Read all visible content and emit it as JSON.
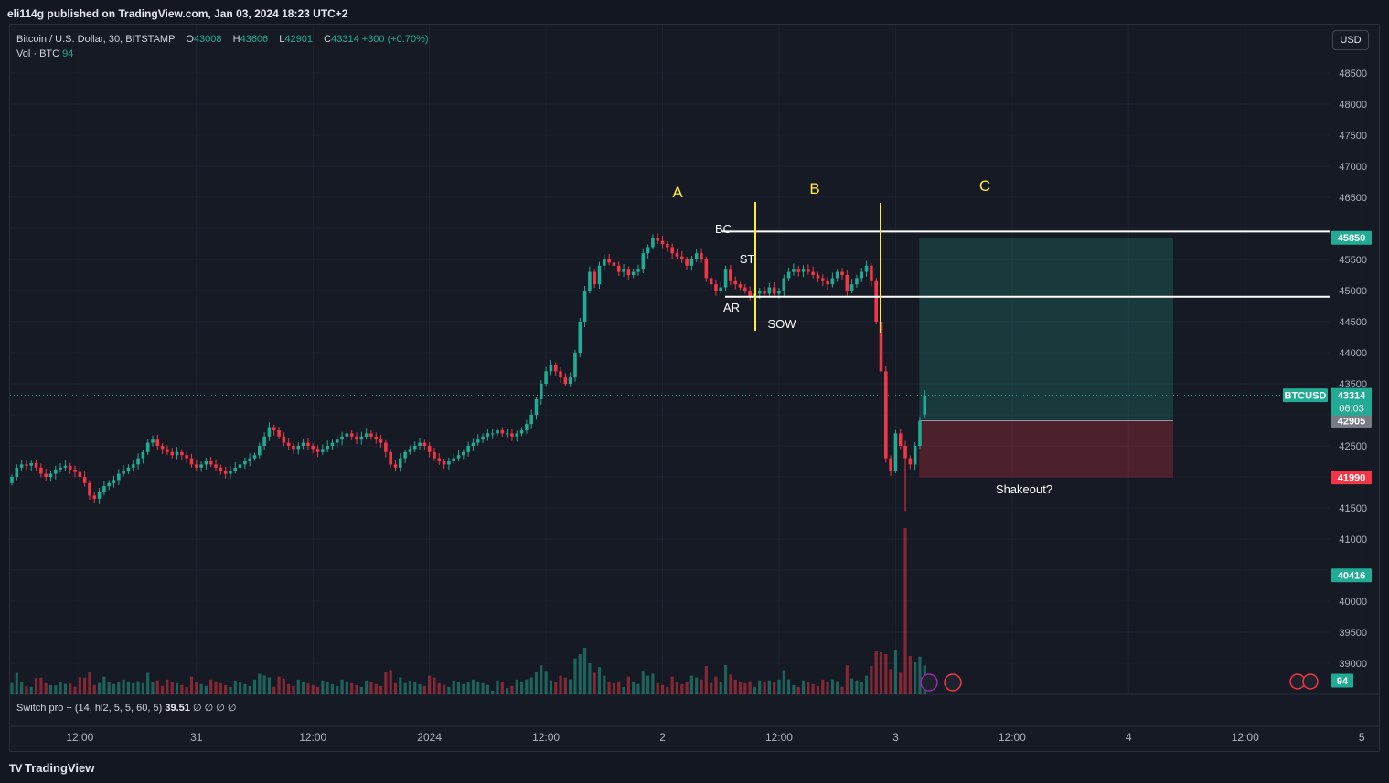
{
  "header": {
    "published_by": "eli114g published on TradingView.com, Jan 03, 2024 18:23 UTC+2"
  },
  "legend": {
    "symbol": "Bitcoin / U.S. Dollar, 30, BITSTAMP",
    "o_label": "O",
    "o_value": "43008",
    "h_label": "H",
    "h_value": "43606",
    "l_label": "L",
    "l_value": "42901",
    "c_label": "C",
    "c_value": "43314",
    "change": "+300 (+0.70%)",
    "vol_label": "Vol · BTC",
    "vol_value": "94"
  },
  "currency_button": "USD",
  "indicator": {
    "name": "Switch pro + (14, hl2, 5, 5, 60, 5)",
    "value": "39.51",
    "extras": "∅ ∅ ∅ ∅"
  },
  "footer": {
    "brand": "TradingView"
  },
  "colors": {
    "up": "#22ab94",
    "down": "#f23645",
    "bg": "#161a25",
    "grid": "#1f2330",
    "text": "#b2b5be",
    "annotation_yellow": "#ffeb3b",
    "white": "#ffffff"
  },
  "chart_data": {
    "type": "candlestick",
    "symbol": "BTCUSD",
    "y_ticks": [
      39000,
      39500,
      40000,
      40500,
      41000,
      41500,
      42000,
      42500,
      43000,
      43500,
      44000,
      44500,
      45000,
      45500,
      46000,
      46500,
      47000,
      47500,
      48000,
      48500
    ],
    "y_tick_labels": [
      "39000",
      "39500",
      "40000",
      "",
      "41000",
      "41500",
      "",
      "42500",
      "",
      "43500",
      "44000",
      "44500",
      "45000",
      "45500",
      "",
      "46500",
      "47000",
      "47500",
      "48000",
      "48500"
    ],
    "x_tick_labels": [
      "12:00",
      "31",
      "12:00",
      "2024",
      "12:00",
      "2",
      "12:00",
      "3",
      "12:00",
      "4",
      "12:00",
      "5",
      "12:00"
    ],
    "x_tick_bars": [
      14,
      38,
      62,
      86,
      110,
      134,
      158,
      182,
      206,
      230,
      254,
      278,
      302
    ],
    "closes": [
      42000,
      42150,
      42200,
      42180,
      42220,
      42150,
      42050,
      42000,
      42050,
      42120,
      42150,
      42180,
      42120,
      42080,
      42000,
      41900,
      41700,
      41650,
      41750,
      41850,
      41900,
      41950,
      42050,
      42100,
      42150,
      42200,
      42300,
      42400,
      42550,
      42600,
      42500,
      42450,
      42400,
      42350,
      42400,
      42350,
      42300,
      42200,
      42150,
      42200,
      42250,
      42200,
      42150,
      42100,
      42050,
      42100,
      42150,
      42200,
      42250,
      42300,
      42350,
      42500,
      42650,
      42800,
      42750,
      42650,
      42550,
      42500,
      42450,
      42500,
      42550,
      42500,
      42450,
      42400,
      42450,
      42500,
      42550,
      42600,
      42650,
      42700,
      42650,
      42600,
      42650,
      42700,
      42650,
      42600,
      42550,
      42400,
      42200,
      42150,
      42300,
      42400,
      42450,
      42500,
      42550,
      42500,
      42400,
      42300,
      42250,
      42200,
      42250,
      42300,
      42350,
      42400,
      42500,
      42550,
      42600,
      42650,
      42700,
      42700,
      42750,
      42700,
      42700,
      42650,
      42700,
      42750,
      42850,
      43000,
      43250,
      43500,
      43700,
      43800,
      43700,
      43600,
      43500,
      43600,
      44000,
      44500,
      45000,
      45300,
      45100,
      45400,
      45500,
      45450,
      45400,
      45300,
      45350,
      45250,
      45300,
      45350,
      45600,
      45700,
      45850,
      45800,
      45750,
      45700,
      45600,
      45550,
      45500,
      45400,
      45500,
      45600,
      45500,
      45200,
      45100,
      45000,
      45050,
      45350,
      45150,
      45100,
      45050,
      45000,
      44900,
      44950,
      45000,
      44950,
      45050,
      44950,
      45000,
      45200,
      45300,
      45350,
      45300,
      45350,
      45300,
      45250,
      45200,
      45150,
      45100,
      45200,
      45300,
      45250,
      45000,
      45100,
      45200,
      45300,
      45400,
      45150,
      44500,
      43700,
      42300,
      42100,
      42700,
      42500,
      42300,
      42200,
      42500,
      42900,
      43314
    ],
    "opens": [
      41900,
      42000,
      42150,
      42200,
      42180,
      42220,
      42150,
      42050,
      42000,
      42050,
      42120,
      42150,
      42180,
      42120,
      42080,
      42000,
      41900,
      41700,
      41650,
      41750,
      41850,
      41900,
      41950,
      42050,
      42100,
      42150,
      42200,
      42300,
      42400,
      42550,
      42600,
      42500,
      42450,
      42400,
      42350,
      42400,
      42350,
      42300,
      42200,
      42150,
      42200,
      42250,
      42200,
      42150,
      42100,
      42050,
      42100,
      42150,
      42200,
      42250,
      42300,
      42350,
      42500,
      42650,
      42800,
      42750,
      42650,
      42550,
      42500,
      42450,
      42500,
      42550,
      42500,
      42450,
      42400,
      42450,
      42500,
      42550,
      42600,
      42650,
      42700,
      42650,
      42600,
      42650,
      42700,
      42650,
      42600,
      42550,
      42400,
      42200,
      42150,
      42300,
      42400,
      42450,
      42500,
      42550,
      42500,
      42400,
      42300,
      42250,
      42200,
      42250,
      42300,
      42350,
      42400,
      42500,
      42550,
      42600,
      42650,
      42700,
      42700,
      42750,
      42700,
      42700,
      42650,
      42700,
      42750,
      42850,
      43000,
      43250,
      43500,
      43700,
      43800,
      43700,
      43600,
      43500,
      43600,
      44000,
      44500,
      45000,
      45300,
      45100,
      45400,
      45500,
      45450,
      45400,
      45300,
      45350,
      45250,
      45300,
      45350,
      45600,
      45700,
      45850,
      45800,
      45750,
      45700,
      45600,
      45550,
      45500,
      45400,
      45500,
      45600,
      45500,
      45200,
      45100,
      45000,
      45050,
      45350,
      45150,
      45100,
      45050,
      45000,
      44900,
      44950,
      45000,
      44950,
      45050,
      44950,
      45000,
      45200,
      45300,
      45350,
      45300,
      45350,
      45300,
      45250,
      45200,
      45150,
      45100,
      45200,
      45300,
      45250,
      45000,
      45100,
      45200,
      45300,
      45400,
      45150,
      44500,
      43700,
      42300,
      42100,
      42700,
      42500,
      42300,
      42200,
      42500,
      43008
    ],
    "volume_spike_bar": 184,
    "current_price": 43314,
    "current_price_label": "43314",
    "countdown": "06:03",
    "symbol_tag": "BTCUSD",
    "price_tags": [
      {
        "price": 45850,
        "label": "45850",
        "color": "#22ab94"
      },
      {
        "price": 42905,
        "label": "42905",
        "color": "#787b86"
      },
      {
        "price": 41990,
        "label": "41990",
        "color": "#f23645"
      },
      {
        "price": 40416,
        "label": "40416",
        "color": "#22ab94"
      }
    ],
    "volume_tag": "94",
    "annotations": {
      "wave_labels": [
        "A",
        "B",
        "C"
      ],
      "text_labels": [
        "BC",
        "ST",
        "AR",
        "SOW",
        "Shakeout?"
      ],
      "upper_line_price": 45950,
      "lower_line_price": 44900,
      "position_entry": 42905,
      "position_target": 45850,
      "position_stop": 41990
    }
  }
}
